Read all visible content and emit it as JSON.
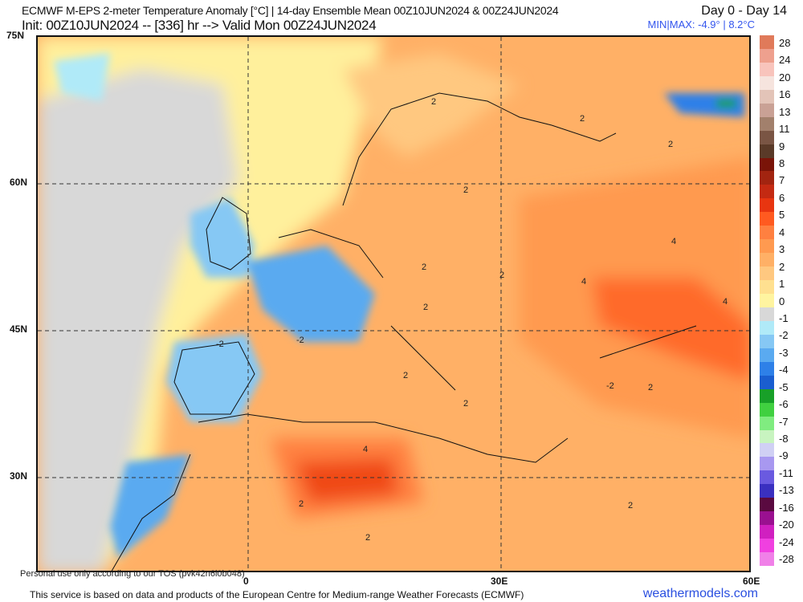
{
  "header": {
    "title": "ECMWF M-EPS 2-meter Temperature Anomaly [°C] | 14-day Ensemble Mean 00Z10JUN2024 & 00Z24JUN2024",
    "init": "Init: 00Z10JUN2024 -- [336] hr --> Valid Mon 00Z24JUN2024",
    "day_range": "Day 0 - Day 14",
    "minmax": "MIN|MAX: -4.9° | 8.2°C"
  },
  "axes": {
    "lat_labels": [
      "75N",
      "60N",
      "45N",
      "30N"
    ],
    "lon_labels": [
      "0",
      "30E",
      "60E"
    ]
  },
  "colorbar": {
    "labels": [
      "28",
      "24",
      "20",
      "16",
      "13",
      "11",
      "9",
      "8",
      "7",
      "6",
      "5",
      "4",
      "3",
      "2",
      "1",
      "0",
      "-1",
      "-2",
      "-3",
      "-4",
      "-5",
      "-6",
      "-7",
      "-8",
      "-9",
      "-11",
      "-13",
      "-16",
      "-20",
      "-24",
      "-28"
    ],
    "colors": [
      "#e07a5a",
      "#eea08e",
      "#f8c4bc",
      "#f6e4de",
      "#e3c4b8",
      "#c9a195",
      "#a2806c",
      "#7a5544",
      "#5a3a28",
      "#7a1408",
      "#a22410",
      "#c42a12",
      "#e83510",
      "#ff5a20",
      "#ff8040",
      "#ff9a50",
      "#ffb066",
      "#ffc880",
      "#ffe090",
      "#fff4a0",
      "#d8d8d8",
      "#b0eaf8",
      "#86c8f4",
      "#5aaaf0",
      "#2e80e8",
      "#1a5ed0",
      "#18a028",
      "#40d040",
      "#80ec80",
      "#c8f4c0",
      "#d0d0f4",
      "#a898f0",
      "#6a5ae0",
      "#3a30c0",
      "#5a0a40",
      "#9a1090",
      "#d020c0",
      "#f040e0",
      "#f080e8"
    ]
  },
  "contour_labels": [
    "2",
    "2",
    "2",
    "2",
    "2",
    "2",
    "2",
    "2",
    "4",
    "4",
    "4",
    "4",
    "2",
    "2",
    "2",
    "-2",
    "-2",
    "-2",
    "2",
    "2"
  ],
  "footer": {
    "tos": "Personal use only according to our TOS (pvk42n6l0b048)",
    "source": "This service is based on data and products of the European Centre for Medium-range Weather Forecasts (ECMWF)",
    "brand": "weathermodels.com"
  }
}
